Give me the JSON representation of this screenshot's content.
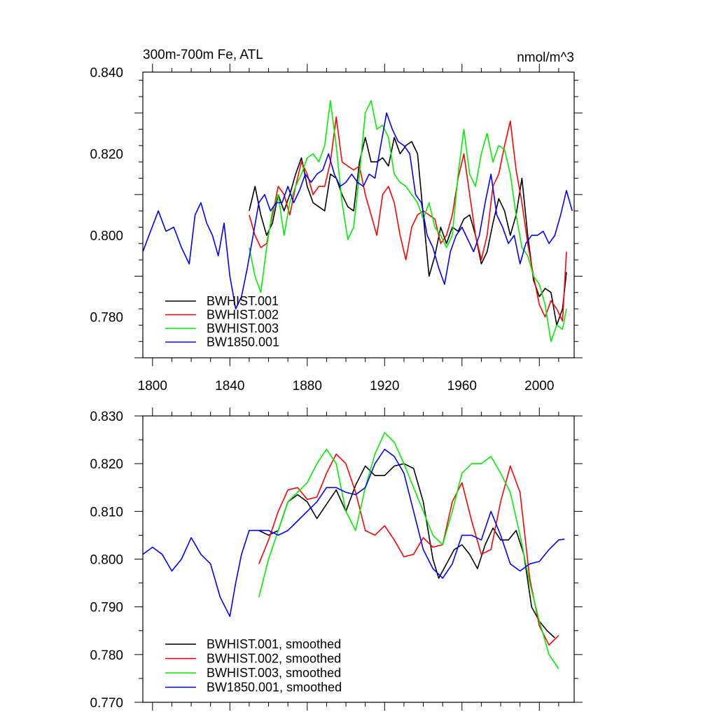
{
  "chart_data": [
    {
      "type": "line",
      "title": "300m-700m Fe, ATL",
      "units": "nmol/m^3",
      "xlim": [
        1795,
        2018
      ],
      "ylim": [
        0.77,
        0.84
      ],
      "xticks": [
        1800,
        1840,
        1880,
        1920,
        1960,
        2000
      ],
      "xtick_labels": [
        "1800",
        "1840",
        "1880",
        "1920",
        "1960",
        "2000"
      ],
      "yticks": [
        0.78,
        0.8,
        0.82,
        0.84
      ],
      "ytick_labels": [
        "0.780",
        "0.800",
        "0.820",
        "0.840"
      ],
      "grid": false,
      "legend_position": "bottom-left",
      "series": [
        {
          "name": "BWHIST.001",
          "color": "#000000",
          "x": [
            1850,
            1853,
            1856,
            1859,
            1862,
            1865,
            1868,
            1871,
            1874,
            1877,
            1880,
            1883,
            1886,
            1889,
            1892,
            1895,
            1898,
            1901,
            1904,
            1907,
            1910,
            1913,
            1916,
            1919,
            1922,
            1925,
            1928,
            1931,
            1934,
            1937,
            1940,
            1943,
            1946,
            1949,
            1952,
            1955,
            1958,
            1961,
            1964,
            1967,
            1970,
            1973,
            1976,
            1979,
            1982,
            1985,
            1988,
            1991,
            1994,
            1997,
            2000,
            2003,
            2006,
            2009,
            2012,
            2014
          ],
          "y": [
            0.806,
            0.812,
            0.805,
            0.8,
            0.803,
            0.81,
            0.806,
            0.81,
            0.815,
            0.819,
            0.812,
            0.808,
            0.807,
            0.806,
            0.815,
            0.814,
            0.81,
            0.807,
            0.806,
            0.818,
            0.824,
            0.818,
            0.818,
            0.819,
            0.817,
            0.824,
            0.82,
            0.822,
            0.823,
            0.82,
            0.805,
            0.79,
            0.795,
            0.802,
            0.798,
            0.802,
            0.801,
            0.804,
            0.805,
            0.8,
            0.793,
            0.796,
            0.803,
            0.809,
            0.806,
            0.8,
            0.805,
            0.814,
            0.8,
            0.789,
            0.785,
            0.787,
            0.786,
            0.778,
            0.782,
            0.791
          ]
        },
        {
          "name": "BWHIST.002",
          "color": "#ff0000",
          "x": [
            1850,
            1853,
            1856,
            1859,
            1862,
            1865,
            1868,
            1871,
            1874,
            1877,
            1880,
            1883,
            1886,
            1889,
            1892,
            1895,
            1898,
            1901,
            1904,
            1907,
            1910,
            1913,
            1916,
            1919,
            1922,
            1925,
            1928,
            1931,
            1934,
            1937,
            1940,
            1943,
            1946,
            1949,
            1952,
            1955,
            1958,
            1961,
            1964,
            1967,
            1970,
            1973,
            1976,
            1979,
            1982,
            1985,
            1988,
            1991,
            1994,
            1997,
            2000,
            2003,
            2006,
            2009,
            2012,
            2014
          ],
          "y": [
            0.805,
            0.8,
            0.797,
            0.798,
            0.805,
            0.812,
            0.81,
            0.805,
            0.812,
            0.818,
            0.815,
            0.81,
            0.812,
            0.812,
            0.818,
            0.829,
            0.818,
            0.817,
            0.816,
            0.817,
            0.81,
            0.805,
            0.8,
            0.81,
            0.812,
            0.808,
            0.8,
            0.794,
            0.802,
            0.805,
            0.806,
            0.805,
            0.804,
            0.798,
            0.8,
            0.805,
            0.814,
            0.82,
            0.81,
            0.8,
            0.794,
            0.8,
            0.812,
            0.815,
            0.822,
            0.828,
            0.816,
            0.808,
            0.798,
            0.79,
            0.783,
            0.78,
            0.784,
            0.782,
            0.779,
            0.796
          ]
        },
        {
          "name": "BWHIST.003",
          "color": "#00ee00",
          "x": [
            1850,
            1853,
            1856,
            1859,
            1862,
            1865,
            1868,
            1871,
            1874,
            1877,
            1880,
            1883,
            1886,
            1889,
            1892,
            1895,
            1898,
            1901,
            1904,
            1907,
            1910,
            1913,
            1916,
            1919,
            1922,
            1925,
            1928,
            1931,
            1934,
            1937,
            1940,
            1943,
            1946,
            1949,
            1952,
            1955,
            1958,
            1961,
            1964,
            1967,
            1970,
            1973,
            1976,
            1979,
            1982,
            1985,
            1988,
            1991,
            1994,
            1997,
            2000,
            2003,
            2006,
            2009,
            2012,
            2014
          ],
          "y": [
            0.797,
            0.79,
            0.786,
            0.797,
            0.806,
            0.81,
            0.8,
            0.808,
            0.812,
            0.815,
            0.819,
            0.82,
            0.818,
            0.822,
            0.833,
            0.822,
            0.808,
            0.799,
            0.802,
            0.815,
            0.83,
            0.833,
            0.826,
            0.827,
            0.824,
            0.815,
            0.813,
            0.812,
            0.81,
            0.808,
            0.804,
            0.808,
            0.802,
            0.8,
            0.797,
            0.8,
            0.815,
            0.826,
            0.815,
            0.812,
            0.82,
            0.825,
            0.818,
            0.822,
            0.821,
            0.815,
            0.805,
            0.797,
            0.795,
            0.79,
            0.788,
            0.783,
            0.774,
            0.778,
            0.777,
            0.782
          ]
        },
        {
          "name": "BW1850.001",
          "color": "#0000ff",
          "x": [
            1795,
            1799,
            1803,
            1807,
            1811,
            1815,
            1819,
            1822,
            1825,
            1828,
            1831,
            1834,
            1837,
            1840,
            1843,
            1846,
            1849,
            1852,
            1855,
            1858,
            1861,
            1864,
            1867,
            1870,
            1873,
            1876,
            1879,
            1882,
            1885,
            1888,
            1891,
            1894,
            1897,
            1900,
            1903,
            1906,
            1909,
            1912,
            1915,
            1918,
            1921,
            1924,
            1927,
            1930,
            1933,
            1936,
            1939,
            1942,
            1945,
            1948,
            1951,
            1954,
            1957,
            1960,
            1963,
            1966,
            1969,
            1972,
            1975,
            1978,
            1981,
            1984,
            1987,
            1990,
            1993,
            1996,
            1999,
            2002,
            2005,
            2008,
            2011,
            2014,
            2017
          ],
          "y": [
            0.796,
            0.801,
            0.806,
            0.801,
            0.802,
            0.797,
            0.793,
            0.805,
            0.808,
            0.803,
            0.8,
            0.795,
            0.803,
            0.79,
            0.782,
            0.785,
            0.792,
            0.8,
            0.808,
            0.81,
            0.806,
            0.808,
            0.808,
            0.812,
            0.808,
            0.811,
            0.815,
            0.813,
            0.815,
            0.816,
            0.82,
            0.815,
            0.812,
            0.813,
            0.815,
            0.813,
            0.812,
            0.815,
            0.814,
            0.822,
            0.83,
            0.826,
            0.823,
            0.822,
            0.82,
            0.81,
            0.808,
            0.8,
            0.797,
            0.792,
            0.788,
            0.796,
            0.8,
            0.802,
            0.799,
            0.796,
            0.8,
            0.808,
            0.815,
            0.805,
            0.802,
            0.798,
            0.8,
            0.793,
            0.798,
            0.8,
            0.8,
            0.801,
            0.798,
            0.8,
            0.805,
            0.811,
            0.806
          ]
        }
      ],
      "legend": [
        {
          "label": "BWHIST.001",
          "color": "#000000"
        },
        {
          "label": "BWHIST.002",
          "color": "#ff0000"
        },
        {
          "label": "BWHIST.003",
          "color": "#00ee00"
        },
        {
          "label": "BW1850.001",
          "color": "#0000ff"
        }
      ]
    },
    {
      "type": "line",
      "title": "",
      "xlim": [
        1795,
        2018
      ],
      "ylim": [
        0.77,
        0.83
      ],
      "xticks": [
        1800,
        1840,
        1880,
        1920,
        1960,
        2000
      ],
      "xtick_labels": [],
      "yticks": [
        0.77,
        0.78,
        0.79,
        0.8,
        0.81,
        0.82,
        0.83
      ],
      "ytick_labels": [
        "0.770",
        "0.780",
        "0.790",
        "0.800",
        "0.810",
        "0.820",
        "0.830"
      ],
      "grid": false,
      "legend_position": "bottom-left",
      "series": [
        {
          "name": "BWHIST.001, smoothed",
          "color": "#000000",
          "x": [
            1855,
            1860,
            1865,
            1870,
            1875,
            1880,
            1885,
            1890,
            1895,
            1900,
            1905,
            1910,
            1915,
            1920,
            1925,
            1930,
            1935,
            1940,
            1945,
            1948,
            1952,
            1956,
            1960,
            1964,
            1968,
            1972,
            1976,
            1980,
            1984,
            1988,
            1992,
            1996,
            2000,
            2004,
            2008
          ],
          "y": [
            0.806,
            0.805,
            0.806,
            0.812,
            0.8135,
            0.812,
            0.8085,
            0.8115,
            0.8145,
            0.81,
            0.8155,
            0.8195,
            0.8175,
            0.8175,
            0.8195,
            0.82,
            0.819,
            0.812,
            0.8,
            0.796,
            0.799,
            0.802,
            0.803,
            0.801,
            0.798,
            0.803,
            0.8065,
            0.804,
            0.804,
            0.806,
            0.801,
            0.79,
            0.787,
            0.785,
            0.7835
          ]
        },
        {
          "name": "BWHIST.002, smoothed",
          "color": "#ff0000",
          "x": [
            1855,
            1860,
            1865,
            1870,
            1875,
            1880,
            1885,
            1890,
            1895,
            1900,
            1905,
            1910,
            1915,
            1920,
            1925,
            1930,
            1935,
            1940,
            1945,
            1950,
            1955,
            1960,
            1965,
            1970,
            1975,
            1980,
            1985,
            1990,
            1995,
            2000,
            2005,
            2010
          ],
          "y": [
            0.799,
            0.804,
            0.81,
            0.8145,
            0.815,
            0.8125,
            0.813,
            0.818,
            0.822,
            0.82,
            0.814,
            0.806,
            0.805,
            0.807,
            0.804,
            0.8005,
            0.801,
            0.8045,
            0.8025,
            0.803,
            0.812,
            0.816,
            0.808,
            0.801,
            0.802,
            0.812,
            0.8195,
            0.814,
            0.796,
            0.786,
            0.782,
            0.784
          ]
        },
        {
          "name": "BWHIST.003, smoothed",
          "color": "#00ee00",
          "x": [
            1855,
            1860,
            1865,
            1870,
            1875,
            1880,
            1885,
            1890,
            1895,
            1900,
            1905,
            1910,
            1915,
            1920,
            1925,
            1930,
            1935,
            1940,
            1945,
            1950,
            1955,
            1960,
            1965,
            1970,
            1975,
            1980,
            1985,
            1990,
            1995,
            2000,
            2005,
            2010
          ],
          "y": [
            0.792,
            0.8,
            0.806,
            0.812,
            0.814,
            0.816,
            0.82,
            0.823,
            0.82,
            0.81,
            0.806,
            0.815,
            0.822,
            0.8265,
            0.8245,
            0.82,
            0.815,
            0.81,
            0.805,
            0.803,
            0.81,
            0.818,
            0.82,
            0.82,
            0.8215,
            0.818,
            0.814,
            0.805,
            0.795,
            0.787,
            0.78,
            0.777
          ]
        },
        {
          "name": "BW1850.001, smoothed",
          "color": "#0000ff",
          "x": [
            1795,
            1800,
            1805,
            1810,
            1815,
            1820,
            1825,
            1830,
            1835,
            1840,
            1843,
            1846,
            1850,
            1855,
            1860,
            1865,
            1870,
            1875,
            1880,
            1885,
            1890,
            1895,
            1900,
            1905,
            1910,
            1915,
            1920,
            1925,
            1930,
            1935,
            1940,
            1945,
            1950,
            1955,
            1960,
            1965,
            1970,
            1975,
            1980,
            1985,
            1990,
            1995,
            2000,
            2005,
            2010,
            2013
          ],
          "y": [
            0.801,
            0.8025,
            0.801,
            0.7975,
            0.8,
            0.8045,
            0.801,
            0.799,
            0.792,
            0.788,
            0.795,
            0.801,
            0.806,
            0.806,
            0.806,
            0.805,
            0.806,
            0.808,
            0.81,
            0.812,
            0.815,
            0.815,
            0.814,
            0.8135,
            0.815,
            0.82,
            0.823,
            0.8215,
            0.818,
            0.81,
            0.802,
            0.798,
            0.796,
            0.799,
            0.805,
            0.805,
            0.804,
            0.81,
            0.805,
            0.799,
            0.7975,
            0.799,
            0.7995,
            0.802,
            0.804,
            0.8042
          ]
        }
      ],
      "legend": [
        {
          "label": "BWHIST.001, smoothed",
          "color": "#000000"
        },
        {
          "label": "BWHIST.002, smoothed",
          "color": "#ff0000"
        },
        {
          "label": "BWHIST.003, smoothed",
          "color": "#00ee00"
        },
        {
          "label": "BW1850.001, smoothed",
          "color": "#0000ff"
        }
      ]
    }
  ]
}
